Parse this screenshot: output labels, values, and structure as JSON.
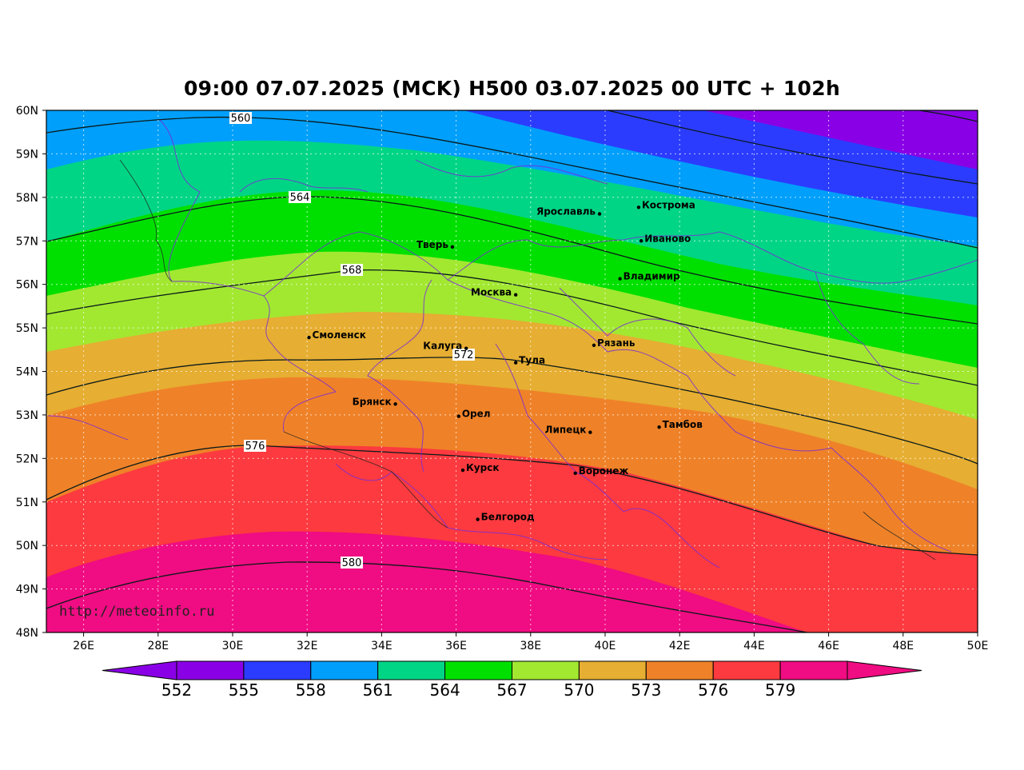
{
  "title": "09:00 07.07.2025 (MCK) H500  03.07.2025 00 UTC + 102h",
  "watermark": "http://meteoinfo.ru",
  "lat_labels": [
    "60N",
    "59N",
    "58N",
    "57N",
    "56N",
    "55N",
    "54N",
    "53N",
    "52N",
    "51N",
    "50N",
    "49N",
    "48N"
  ],
  "lon_labels": [
    "26E",
    "28E",
    "30E",
    "32E",
    "34E",
    "36E",
    "38E",
    "40E",
    "42E",
    "44E",
    "46E",
    "48E",
    "50E"
  ],
  "cities": [
    {
      "name": "Кострома",
      "lon": 40.9,
      "lat": 57.77
    },
    {
      "name": "Ярославль",
      "lon": 39.85,
      "lat": 57.62
    },
    {
      "name": "Иваново",
      "lon": 40.97,
      "lat": 57.0
    },
    {
      "name": "Тверь",
      "lon": 35.9,
      "lat": 56.86
    },
    {
      "name": "Владимир",
      "lon": 40.4,
      "lat": 56.13
    },
    {
      "name": "Москва",
      "lon": 37.6,
      "lat": 55.76
    },
    {
      "name": "Смоленск",
      "lon": 32.05,
      "lat": 54.78
    },
    {
      "name": "Рязань",
      "lon": 39.7,
      "lat": 54.6
    },
    {
      "name": "Калуга",
      "lon": 36.27,
      "lat": 54.53
    },
    {
      "name": "Тула",
      "lon": 37.6,
      "lat": 54.2
    },
    {
      "name": "Брянск",
      "lon": 34.37,
      "lat": 53.25
    },
    {
      "name": "Орел",
      "lon": 36.07,
      "lat": 52.97
    },
    {
      "name": "Липецк",
      "lon": 39.6,
      "lat": 52.6
    },
    {
      "name": "Тамбов",
      "lon": 41.45,
      "lat": 52.72
    },
    {
      "name": "Курск",
      "lon": 36.18,
      "lat": 51.73
    },
    {
      "name": "Воронеж",
      "lon": 39.2,
      "lat": 51.66
    },
    {
      "name": "Белгород",
      "lon": 36.58,
      "lat": 50.6
    }
  ],
  "contour_labels": [
    "560",
    "564",
    "568",
    "572",
    "576",
    "580"
  ],
  "colorbar": {
    "ticks": [
      "552",
      "555",
      "558",
      "561",
      "564",
      "567",
      "570",
      "573",
      "576",
      "579"
    ],
    "colors": [
      "#8a00e6",
      "#8a00e6",
      "#2b3cff",
      "#009ffb",
      "#00d586",
      "#00e000",
      "#a2e831",
      "#e6ae32",
      "#ef8228",
      "#fc3a3f",
      "#f00c82",
      "#f00c82"
    ]
  }
}
